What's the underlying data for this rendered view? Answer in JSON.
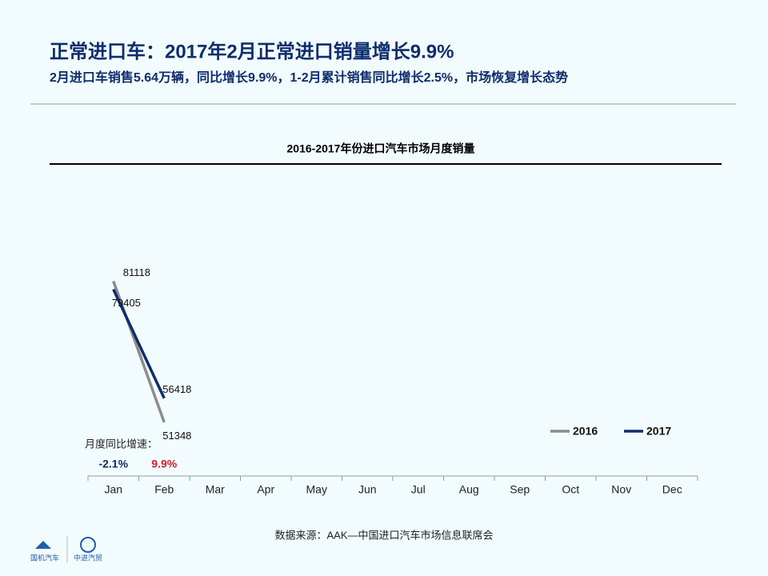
{
  "header": {
    "title": "正常进口车：2017年2月正常进口销量增长9.9%",
    "subtitle": "2月进口车销售5.64万辆，同比增长9.9%，1-2月累计销售同比增长2.5%，市场恢复增长态势"
  },
  "chart_data": {
    "type": "line",
    "title": "2016-2017年份进口汽车市场月度销量",
    "categories": [
      "Jan",
      "Feb",
      "Mar",
      "Apr",
      "May",
      "Jun",
      "Jul",
      "Aug",
      "Sep",
      "Oct",
      "Nov",
      "Dec"
    ],
    "series": [
      {
        "name": "2016",
        "color": "#8c8c8c",
        "values": [
          81118,
          51348,
          null,
          null,
          null,
          null,
          null,
          null,
          null,
          null,
          null,
          null
        ]
      },
      {
        "name": "2017",
        "color": "#0d2d6c",
        "values": [
          79405,
          56418,
          null,
          null,
          null,
          null,
          null,
          null,
          null,
          null,
          null,
          null
        ]
      }
    ],
    "ylim": [
      40000,
      105000
    ],
    "growth": {
      "label": "月度同比增速：",
      "values": [
        -2.1,
        9.9
      ],
      "value_labels": [
        "-2.1%",
        "9.9%"
      ],
      "colors": [
        "#0d2d6c",
        "#d0202e"
      ]
    }
  },
  "footer": {
    "source": "数据来源：AAK—中国进口汽车市场信息联席会",
    "logo1": "国机汽车",
    "logo2": "中进汽贸"
  }
}
